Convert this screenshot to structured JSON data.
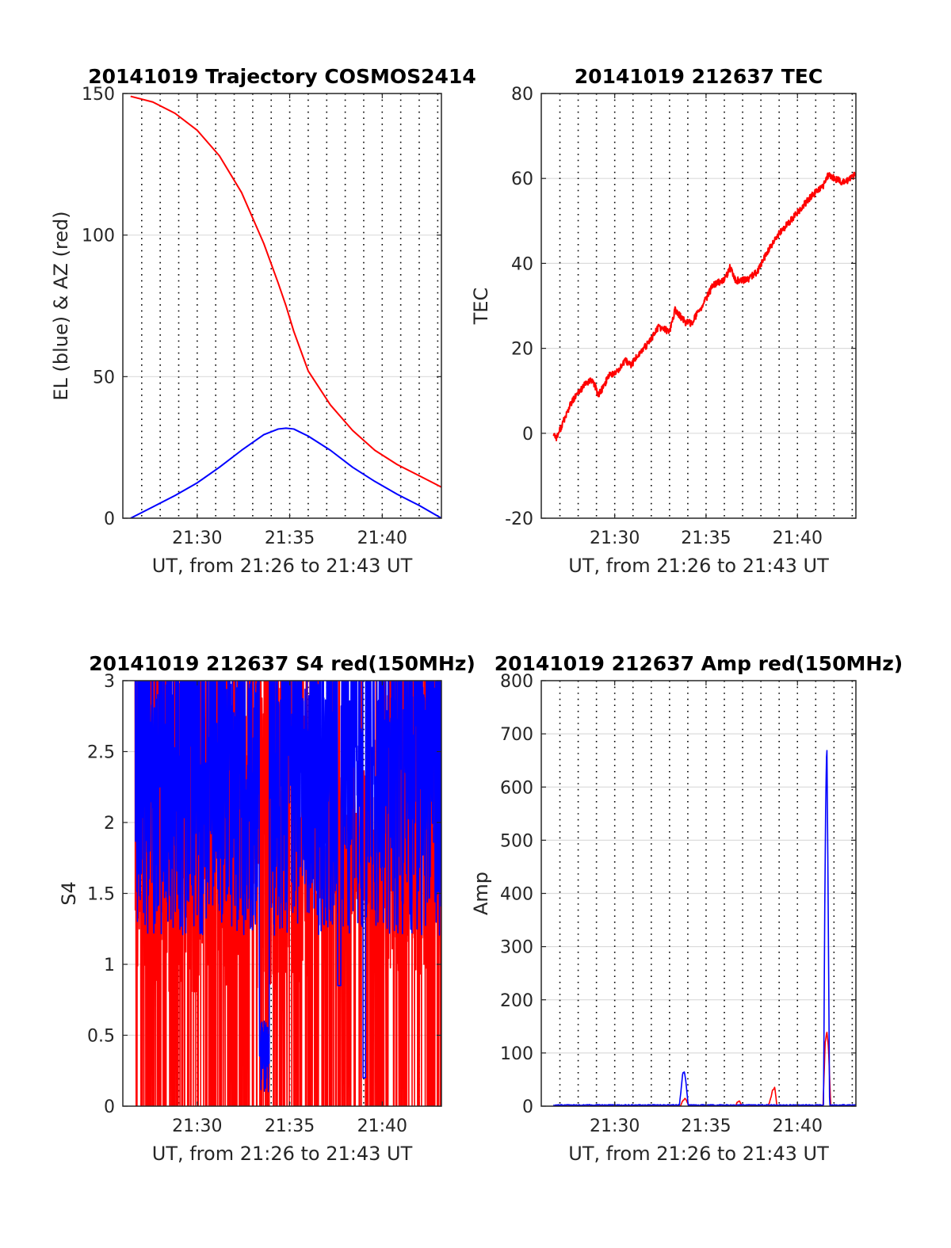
{
  "colors": {
    "red": "#ff0000",
    "blue": "#0000ff"
  },
  "chart_data": [
    {
      "type": "line",
      "title": "20141019 Trajectory COSMOS2414",
      "xlabel": "UT, from 21:26 to 21:43 UT",
      "ylabel": "EL (blue) & AZ (red)",
      "xlim": [
        21.433,
        21.72
      ],
      "ylim": [
        0,
        150
      ],
      "xticks": [
        21.5,
        21.5833,
        21.6667
      ],
      "xticklabels": [
        "21:30",
        "21:35",
        "21:40"
      ],
      "yticks": [
        0,
        50,
        100,
        150
      ],
      "yticklabels": [
        "0",
        "50",
        "100",
        "150"
      ],
      "minute_grid": true,
      "series": [
        {
          "color": "red",
          "x": [
            21.44,
            21.46,
            21.48,
            21.5,
            21.52,
            21.54,
            21.56,
            21.573,
            21.58,
            21.587,
            21.6,
            21.62,
            21.64,
            21.66,
            21.68,
            21.7,
            21.72
          ],
          "y": [
            149,
            147,
            143,
            137,
            128,
            115,
            97,
            83,
            75,
            66,
            52,
            40,
            31,
            24,
            19,
            15,
            11
          ]
        },
        {
          "color": "blue",
          "x": [
            21.44,
            21.46,
            21.48,
            21.5,
            21.52,
            21.54,
            21.56,
            21.573,
            21.58,
            21.587,
            21.6,
            21.62,
            21.64,
            21.66,
            21.68,
            21.7,
            21.72
          ],
          "y": [
            0,
            4,
            8,
            12.5,
            18,
            24,
            29.5,
            31.5,
            31.8,
            31.5,
            29,
            24,
            18,
            13,
            8.5,
            4.5,
            0
          ]
        }
      ]
    },
    {
      "type": "line",
      "title": "20141019 212637 TEC",
      "xlabel": "UT, from 21:26 to 21:43 UT",
      "ylabel": "TEC",
      "xlim": [
        21.433,
        21.72
      ],
      "ylim": [
        -20,
        80
      ],
      "xticks": [
        21.5,
        21.5833,
        21.6667
      ],
      "xticklabels": [
        "21:30",
        "21:35",
        "21:40"
      ],
      "yticks": [
        -20,
        0,
        20,
        40,
        60,
        80
      ],
      "yticklabels": [
        "-20",
        "0",
        "20",
        "40",
        "60",
        "80"
      ],
      "minute_grid": true,
      "series": [
        {
          "color": "red",
          "x": [
            21.444,
            21.447,
            21.452,
            21.46,
            21.468,
            21.475,
            21.48,
            21.485,
            21.49,
            21.495,
            21.5,
            21.51,
            21.515,
            21.52,
            21.53,
            21.54,
            21.55,
            21.555,
            21.565,
            21.57,
            21.58,
            21.59,
            21.6,
            21.605,
            21.61,
            21.62,
            21.63,
            21.64,
            21.65,
            21.66,
            21.67,
            21.68,
            21.69,
            21.695,
            21.7,
            21.71,
            21.72
          ],
          "y": [
            0,
            -1,
            2,
            7,
            10,
            12,
            12.5,
            9,
            11,
            14,
            14,
            17,
            16,
            18,
            21,
            25,
            24,
            29,
            26,
            26,
            30,
            35,
            36,
            39,
            36,
            36,
            38,
            43,
            47,
            50,
            53,
            56,
            58,
            61,
            60,
            59,
            61
          ]
        }
      ]
    },
    {
      "type": "line",
      "title": "20141019 212637 S4 red(150MHz)",
      "xlabel": "UT, from 21:26 to 21:43 UT",
      "ylabel": "S4",
      "xlim": [
        21.433,
        21.72
      ],
      "ylim": [
        0,
        3
      ],
      "xticks": [
        21.5,
        21.5833,
        21.6667
      ],
      "xticklabels": [
        "21:30",
        "21:35",
        "21:40"
      ],
      "yticks": [
        0,
        0.5,
        1,
        1.5,
        2,
        2.5,
        3
      ],
      "yticklabels": [
        "0",
        "0.5",
        "1",
        "1.5",
        "2",
        "2.5",
        "3"
      ],
      "minute_grid": true,
      "series": [
        {
          "color": "red",
          "x_range": [
            21.444,
            21.72
          ],
          "noise": "red_s4"
        },
        {
          "color": "blue",
          "x_range": [
            21.444,
            21.72
          ],
          "noise": "blue_s4"
        }
      ]
    },
    {
      "type": "line",
      "title": "20141019 212637 Amp red(150MHz)",
      "xlabel": "UT, from 21:26 to 21:43 UT",
      "ylabel": "Amp",
      "xlim": [
        21.433,
        21.72
      ],
      "ylim": [
        0,
        800
      ],
      "xticks": [
        21.5,
        21.5833,
        21.6667
      ],
      "xticklabels": [
        "21:30",
        "21:35",
        "21:40"
      ],
      "yticks": [
        0,
        100,
        200,
        300,
        400,
        500,
        600,
        700,
        800
      ],
      "yticklabels": [
        "0",
        "100",
        "200",
        "300",
        "400",
        "500",
        "600",
        "700",
        "800"
      ],
      "minute_grid": true,
      "series": [
        {
          "color": "red",
          "x": [
            21.444,
            21.56,
            21.562,
            21.564,
            21.566,
            21.568,
            21.61,
            21.612,
            21.614,
            21.616,
            21.64,
            21.642,
            21.644,
            21.646,
            21.648,
            21.69,
            21.692,
            21.6935,
            21.695,
            21.697,
            21.72
          ],
          "y": [
            0,
            0,
            10,
            15,
            8,
            0,
            0,
            8,
            10,
            0,
            0,
            12,
            30,
            35,
            0,
            0,
            120,
            140,
            110,
            0,
            0
          ]
        },
        {
          "color": "blue",
          "x": [
            21.444,
            21.559,
            21.5605,
            21.562,
            21.5635,
            21.565,
            21.567,
            21.6905,
            21.6915,
            21.6925,
            21.6935,
            21.6945,
            21.696,
            21.72
          ],
          "y": [
            2,
            2,
            30,
            62,
            65,
            45,
            2,
            2,
            350,
            580,
            690,
            440,
            2,
            2
          ]
        }
      ]
    }
  ]
}
